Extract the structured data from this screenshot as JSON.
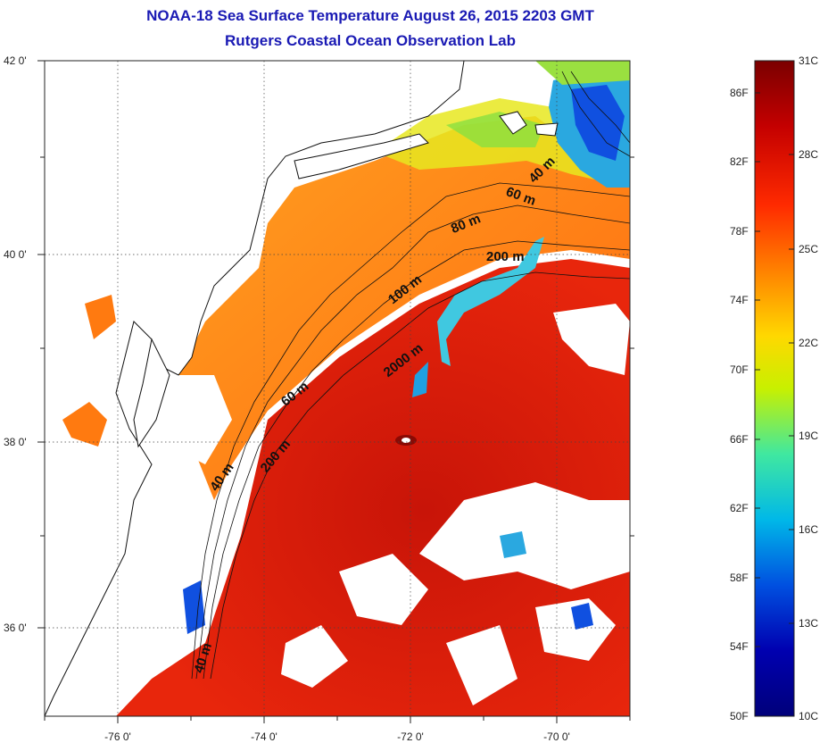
{
  "title": {
    "line1": "NOAA-18 Sea Surface Temperature August 26, 2015 2203 GMT",
    "line2": "Rutgers Coastal Ocean Observation Lab"
  },
  "axes": {
    "x_ticks": [
      "-76 0'",
      "-74 0'",
      "-72 0'",
      "-70 0'"
    ],
    "y_ticks": [
      "42 0'",
      "40 0'",
      "38 0'",
      "36 0'"
    ],
    "grid": "dotted"
  },
  "colorbar": {
    "fahrenheit_labels": [
      "86F",
      "82F",
      "78F",
      "74F",
      "70F",
      "66F",
      "62F",
      "58F",
      "54F",
      "50F"
    ],
    "celsius_labels": [
      "31C",
      "28C",
      "25C",
      "22C",
      "19C",
      "16C",
      "13C",
      "10C"
    ],
    "colors": [
      "#7a0000",
      "#c40000",
      "#ff2a00",
      "#ff8a00",
      "#ffd800",
      "#c8f000",
      "#40e8a0",
      "#00b8e8",
      "#0050e0",
      "#0000b0",
      "#00007a"
    ]
  },
  "depth_labels": [
    "40 m",
    "60 m",
    "80 m",
    "200 m",
    "100 m",
    "2000 m",
    "60 m",
    "200 m",
    "40 m",
    "40 m"
  ],
  "colors": {
    "warm": "#e8220a",
    "hot": "#c81408",
    "orange": "#ff7a10",
    "cold": "#1050e0",
    "title": "#1a1ab4"
  }
}
